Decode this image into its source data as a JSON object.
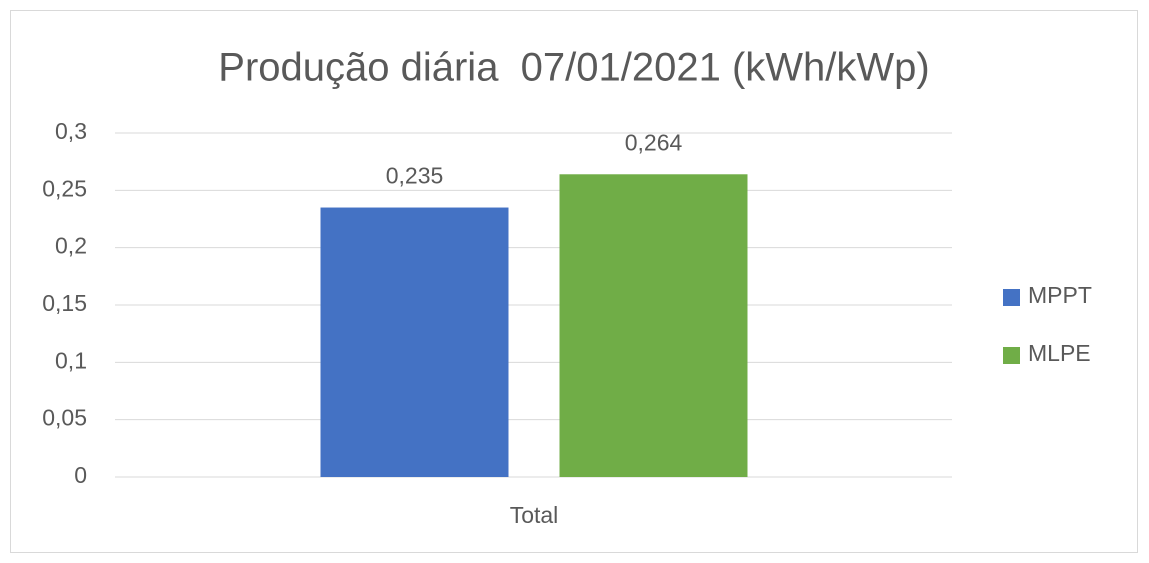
{
  "chart_data": {
    "type": "bar",
    "title": "Produção diária  07/01/2021 (kWh/kWp)",
    "categories": [
      "Total"
    ],
    "series": [
      {
        "name": "MPPT",
        "color": "#4472c4",
        "values": [
          0.235
        ],
        "value_labels": [
          "0,235"
        ]
      },
      {
        "name": "MLPE",
        "color": "#70ad47",
        "values": [
          0.264
        ],
        "value_labels": [
          "0,264"
        ]
      }
    ],
    "ylim": [
      0,
      0.3
    ],
    "yticks": [
      {
        "value": 0,
        "label": "0"
      },
      {
        "value": 0.05,
        "label": "0,05"
      },
      {
        "value": 0.1,
        "label": "0,1"
      },
      {
        "value": 0.15,
        "label": "0,15"
      },
      {
        "value": 0.2,
        "label": "0,2"
      },
      {
        "value": 0.25,
        "label": "0,25"
      },
      {
        "value": 0.3,
        "label": "0,3"
      }
    ],
    "grid": true,
    "legend": "right"
  }
}
